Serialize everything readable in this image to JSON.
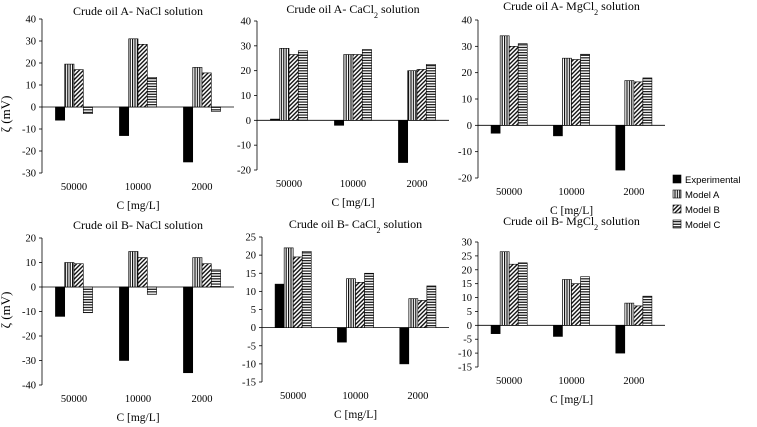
{
  "legend": [
    "Experimental",
    "Model A",
    "Model B",
    "Model C"
  ],
  "y_axis_label": "ζ (mV)",
  "chart_data": [
    {
      "type": "bar",
      "title": "Crude oil A- NaCl solution",
      "xlabel": "C [mg/L]",
      "ylabel": "ζ (mV)",
      "categories": [
        "50000",
        "10000",
        "2000"
      ],
      "ylim": [
        -30,
        40
      ],
      "yticks": [
        -30,
        -20,
        -10,
        0,
        10,
        20,
        30,
        40
      ],
      "series": [
        {
          "name": "Experimental",
          "values": [
            -6,
            -13,
            -25
          ]
        },
        {
          "name": "Model A",
          "values": [
            19.5,
            31,
            18
          ]
        },
        {
          "name": "Model B",
          "values": [
            17,
            28.5,
            15.5
          ]
        },
        {
          "name": "Model C",
          "values": [
            -3,
            13.5,
            -2
          ]
        }
      ]
    },
    {
      "type": "bar",
      "title": "Crude oil A- CaCl",
      "title_sub": "2",
      "title_tail": " solution",
      "xlabel": "C [mg/L]",
      "ylabel": "",
      "categories": [
        "50000",
        "10000",
        "2000"
      ],
      "ylim": [
        -20,
        40
      ],
      "yticks": [
        -20,
        -10,
        0,
        10,
        20,
        30,
        40
      ],
      "series": [
        {
          "name": "Experimental",
          "values": [
            0.5,
            -2,
            -17
          ]
        },
        {
          "name": "Model A",
          "values": [
            29,
            26.5,
            20
          ]
        },
        {
          "name": "Model B",
          "values": [
            26.5,
            26.5,
            20.5
          ]
        },
        {
          "name": "Model C",
          "values": [
            28,
            28.5,
            22.5
          ]
        }
      ]
    },
    {
      "type": "bar",
      "title": "Crude oil A- MgCl",
      "title_sub": "2",
      "title_tail": " solution",
      "xlabel": "C [mg/L]",
      "ylabel": "",
      "categories": [
        "50000",
        "10000",
        "2000"
      ],
      "ylim": [
        -20,
        40
      ],
      "yticks": [
        -20,
        -10,
        0,
        10,
        20,
        30,
        40
      ],
      "series": [
        {
          "name": "Experimental",
          "values": [
            -3,
            -4,
            -17
          ]
        },
        {
          "name": "Model A",
          "values": [
            34,
            25.5,
            17
          ]
        },
        {
          "name": "Model B",
          "values": [
            30,
            25,
            16.5
          ]
        },
        {
          "name": "Model C",
          "values": [
            31,
            27,
            18
          ]
        }
      ]
    },
    {
      "type": "bar",
      "title": "Crude oil B- NaCl solution",
      "xlabel": "C [mg/L]",
      "ylabel": "ζ (mV)",
      "categories": [
        "50000",
        "10000",
        "2000"
      ],
      "ylim": [
        -40,
        20
      ],
      "yticks": [
        -40,
        -30,
        -20,
        -10,
        0,
        10,
        20
      ],
      "series": [
        {
          "name": "Experimental",
          "values": [
            -12,
            -30,
            -35
          ]
        },
        {
          "name": "Model A",
          "values": [
            10,
            14.5,
            12
          ]
        },
        {
          "name": "Model B",
          "values": [
            9.5,
            12,
            9.5
          ]
        },
        {
          "name": "Model C",
          "values": [
            -10.5,
            -3,
            7
          ]
        }
      ]
    },
    {
      "type": "bar",
      "title": "Crude oil B- CaCl",
      "title_sub": "2",
      "title_tail": " solution",
      "xlabel": "C [mg/L]",
      "ylabel": "",
      "categories": [
        "50000",
        "10000",
        "2000"
      ],
      "ylim": [
        -15,
        25
      ],
      "yticks": [
        -15,
        -10,
        -5,
        0,
        5,
        10,
        15,
        20,
        25
      ],
      "series": [
        {
          "name": "Experimental",
          "values": [
            12,
            -4,
            -10
          ]
        },
        {
          "name": "Model A",
          "values": [
            22,
            13.5,
            8
          ]
        },
        {
          "name": "Model B",
          "values": [
            19.5,
            12.5,
            7.5
          ]
        },
        {
          "name": "Model C",
          "values": [
            21,
            15,
            11.5
          ]
        }
      ]
    },
    {
      "type": "bar",
      "title": "Crude oil B- MgCl",
      "title_sub": "2",
      "title_tail": " solution",
      "xlabel": "C [mg/L]",
      "ylabel": "",
      "categories": [
        "50000",
        "10000",
        "2000"
      ],
      "ylim": [
        -15,
        30
      ],
      "yticks": [
        -15,
        -10,
        -5,
        0,
        5,
        10,
        15,
        20,
        25,
        30
      ],
      "series": [
        {
          "name": "Experimental",
          "values": [
            -3,
            -4,
            -10
          ]
        },
        {
          "name": "Model A",
          "values": [
            26.5,
            16.5,
            8
          ]
        },
        {
          "name": "Model B",
          "values": [
            22,
            15,
            7
          ]
        },
        {
          "name": "Model C",
          "values": [
            22.5,
            17.5,
            10.5
          ]
        }
      ]
    }
  ]
}
